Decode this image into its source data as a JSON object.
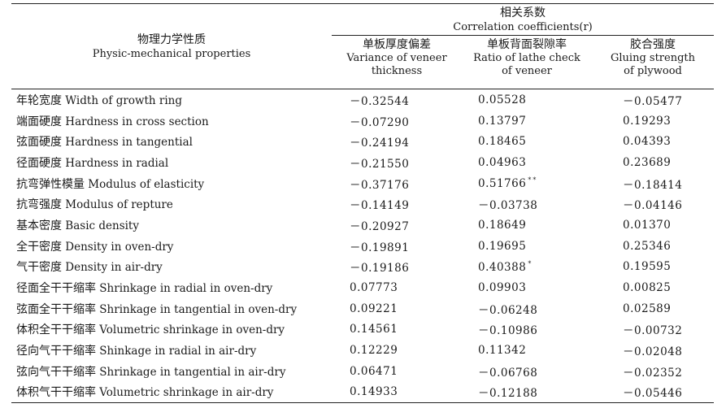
{
  "header": {
    "property_zh": "物理力学性质",
    "property_en": "Physic-mechanical properties",
    "group_zh": "相关系数",
    "group_en": "Correlation coefficients(r)",
    "columns": [
      {
        "zh": "单板厚度偏差",
        "en1": "Variance of veneer",
        "en2": "thickness"
      },
      {
        "zh": "单板背面裂隙率",
        "en1": "Ratio of lathe check",
        "en2": "of veneer"
      },
      {
        "zh": "胶合强度",
        "en1": "Gluing strength",
        "en2": "of plywood"
      }
    ]
  },
  "rows": [
    {
      "zh": "年轮宽度",
      "en": "Width of growth ring",
      "v": [
        "－0.32544",
        "0.05528",
        "－0.05477"
      ],
      "sig": [
        "",
        "",
        ""
      ]
    },
    {
      "zh": "端面硬度",
      "en": "Hardness in cross section",
      "v": [
        "－0.07290",
        "0.13797",
        "0.19293"
      ],
      "sig": [
        "",
        "",
        ""
      ]
    },
    {
      "zh": "弦面硬度",
      "en": "Hardness in tangential",
      "v": [
        "－0.24194",
        "0.18465",
        "0.04393"
      ],
      "sig": [
        "",
        "",
        ""
      ]
    },
    {
      "zh": "径面硬度",
      "en": "Hardness in radial",
      "v": [
        "－0.21550",
        "0.04963",
        "0.23689"
      ],
      "sig": [
        "",
        "",
        ""
      ]
    },
    {
      "zh": "抗弯弹性模量",
      "en": "Modulus of elasticity",
      "v": [
        "－0.37176",
        "0.51766",
        "－0.18414"
      ],
      "sig": [
        "",
        "**",
        ""
      ]
    },
    {
      "zh": "抗弯强度",
      "en": "Modulus of repture",
      "v": [
        "－0.14149",
        "－0.03738",
        "－0.04146"
      ],
      "sig": [
        "",
        "",
        ""
      ]
    },
    {
      "zh": "基本密度",
      "en": "Basic density",
      "v": [
        "－0.20927",
        "0.18649",
        "0.01370"
      ],
      "sig": [
        "",
        "",
        ""
      ]
    },
    {
      "zh": "全干密度",
      "en": "Density in oven-dry",
      "v": [
        "－0.19891",
        "0.19695",
        "0.25346"
      ],
      "sig": [
        "",
        "",
        ""
      ]
    },
    {
      "zh": "气干密度",
      "en": "Density in air-dry",
      "v": [
        "－0.19186",
        "0.40388",
        "0.19595"
      ],
      "sig": [
        "",
        "*",
        ""
      ]
    },
    {
      "zh": "径面全干干缩率",
      "en": "Shrinkage in radial in oven-dry",
      "v": [
        "0.07773",
        "0.09903",
        "0.00825"
      ],
      "sig": [
        "",
        "",
        ""
      ]
    },
    {
      "zh": "弦面全干干缩率",
      "en": "Shrinkage in tangential in oven-dry",
      "v": [
        "0.09221",
        "－0.06248",
        "0.02589"
      ],
      "sig": [
        "",
        "",
        ""
      ]
    },
    {
      "zh": "体积全干干缩率",
      "en": "Volumetric shrinkage in oven-dry",
      "v": [
        "0.14561",
        "－0.10986",
        "－0.00732"
      ],
      "sig": [
        "",
        "",
        ""
      ]
    },
    {
      "zh": "径向气干干缩率",
      "en": "Shinkage in radial in air-dry",
      "v": [
        "0.12229",
        "0.11342",
        "－0.02048"
      ],
      "sig": [
        "",
        "",
        ""
      ]
    },
    {
      "zh": "弦向气干干缩率",
      "en": "Shrinkage in tangential in air-dry",
      "v": [
        "0.06471",
        "－0.06768",
        "－0.02352"
      ],
      "sig": [
        "",
        "",
        ""
      ]
    },
    {
      "zh": "体积气干干缩率",
      "en": "Volumetric shrinkage in air-dry",
      "v": [
        "0.14933",
        "－0.12188",
        "－0.05446"
      ],
      "sig": [
        "",
        "",
        ""
      ]
    }
  ]
}
